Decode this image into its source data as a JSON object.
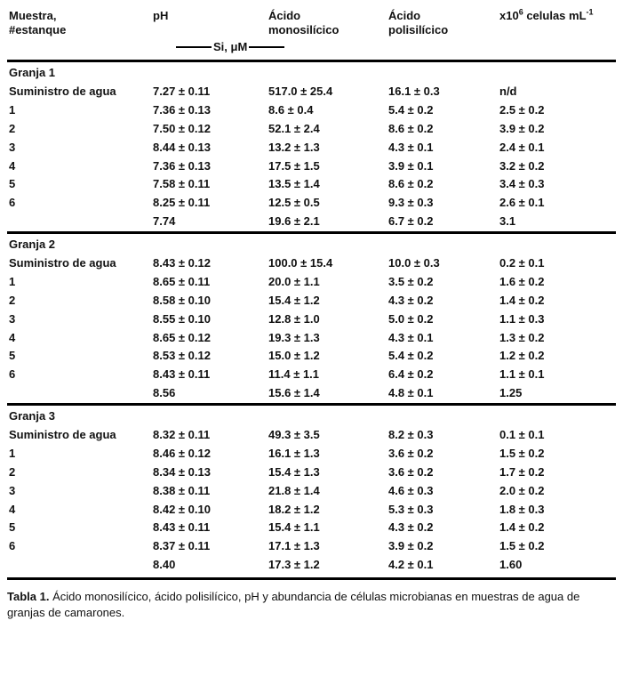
{
  "table": {
    "columns": [
      "Muestra,\n#estanque",
      "pH",
      "Ácido\nmonosilícico",
      "Ácido\npolisilícico"
    ],
    "cells_header": {
      "prefix": "x10",
      "exponent": "6",
      "unit": " celulas mL",
      "unit_exponent": "-1"
    },
    "unit_label": "Si, μM",
    "sections": [
      {
        "title": "Granja 1",
        "rows": [
          [
            "Suministro de agua",
            "7.27 ± 0.11",
            "517.0 ± 25.4",
            "16.1 ± 0.3",
            "n/d"
          ],
          [
            "1",
            "7.36 ± 0.13",
            "8.6 ± 0.4",
            "5.4 ± 0.2",
            "2.5 ± 0.2"
          ],
          [
            "2",
            "7.50 ± 0.12",
            "52.1 ± 2.4",
            "8.6 ± 0.2",
            "3.9 ± 0.2"
          ],
          [
            "3",
            "8.44 ± 0.13",
            "13.2 ± 1.3",
            "4.3 ± 0.1",
            "2.4 ± 0.1"
          ],
          [
            "4",
            "7.36 ± 0.13",
            "17.5 ± 1.5",
            "3.9 ± 0.1",
            "3.2 ± 0.2"
          ],
          [
            "5",
            "7.58 ± 0.11",
            "13.5 ± 1.4",
            "8.6 ± 0.2",
            "3.4 ± 0.3"
          ],
          [
            "6",
            "8.25 ± 0.11",
            "12.5 ± 0.5",
            "9.3 ± 0.3",
            "2.6 ± 0.1"
          ],
          [
            "",
            "7.74",
            "19.6 ± 2.1",
            "6.7 ± 0.2",
            "3.1"
          ]
        ]
      },
      {
        "title": "Granja 2",
        "rows": [
          [
            "Suministro de agua",
            "8.43 ± 0.12",
            "100.0 ± 15.4",
            "10.0 ± 0.3",
            "0.2 ± 0.1"
          ],
          [
            "1",
            "8.65 ± 0.11",
            "20.0 ± 1.1",
            "3.5 ± 0.2",
            "1.6 ± 0.2"
          ],
          [
            "2",
            "8.58 ± 0.10",
            "15.4 ± 1.2",
            "4.3 ± 0.2",
            "1.4 ± 0.2"
          ],
          [
            "3",
            "8.55 ± 0.10",
            "12.8 ± 1.0",
            "5.0 ± 0.2",
            "1.1 ± 0.3"
          ],
          [
            "4",
            "8.65 ± 0.12",
            "19.3 ± 1.3",
            "4.3 ± 0.1",
            "1.3 ± 0.2"
          ],
          [
            "5",
            "8.53 ± 0.12",
            "15.0 ± 1.2",
            "5.4 ± 0.2",
            "1.2 ± 0.2"
          ],
          [
            "6",
            "8.43 ± 0.11",
            "11.4 ± 1.1",
            "6.4 ± 0.2",
            "1.1 ± 0.1"
          ],
          [
            "",
            "8.56",
            "15.6 ± 1.4",
            "4.8 ± 0.1",
            "1.25"
          ]
        ]
      },
      {
        "title": "Granja 3",
        "rows": [
          [
            "Suministro de agua",
            "8.32 ± 0.11",
            "49.3 ± 3.5",
            "8.2 ± 0.3",
            "0.1 ± 0.1"
          ],
          [
            "1",
            "8.46 ± 0.12",
            "16.1 ± 1.3",
            "3.6 ± 0.2",
            "1.5 ± 0.2"
          ],
          [
            "2",
            "8.34 ± 0.13",
            "15.4 ± 1.3",
            "3.6 ± 0.2",
            "1.7 ± 0.2"
          ],
          [
            "3",
            "8.38 ± 0.11",
            "21.8 ± 1.4",
            "4.6 ± 0.3",
            "2.0 ± 0.2"
          ],
          [
            "4",
            "8.42 ± 0.10",
            "18.2 ± 1.2",
            "5.3 ± 0.3",
            "1.8 ± 0.3"
          ],
          [
            "5",
            "8.43 ± 0.11",
            "15.4 ± 1.1",
            "4.3 ± 0.2",
            "1.4 ± 0.2"
          ],
          [
            "6",
            "8.37 ± 0.11",
            "17.1 ± 1.3",
            "3.9 ± 0.2",
            "1.5 ± 0.2"
          ],
          [
            "",
            "8.40",
            "17.3 ± 1.2",
            "4.2 ± 0.1",
            "1.60"
          ]
        ]
      }
    ]
  },
  "caption": {
    "label": "Tabla 1.",
    "text": " Ácido monosilícico, ácido polisilícico, pH y abundancia de células microbianas en muestras de agua de granjas de camarones."
  }
}
